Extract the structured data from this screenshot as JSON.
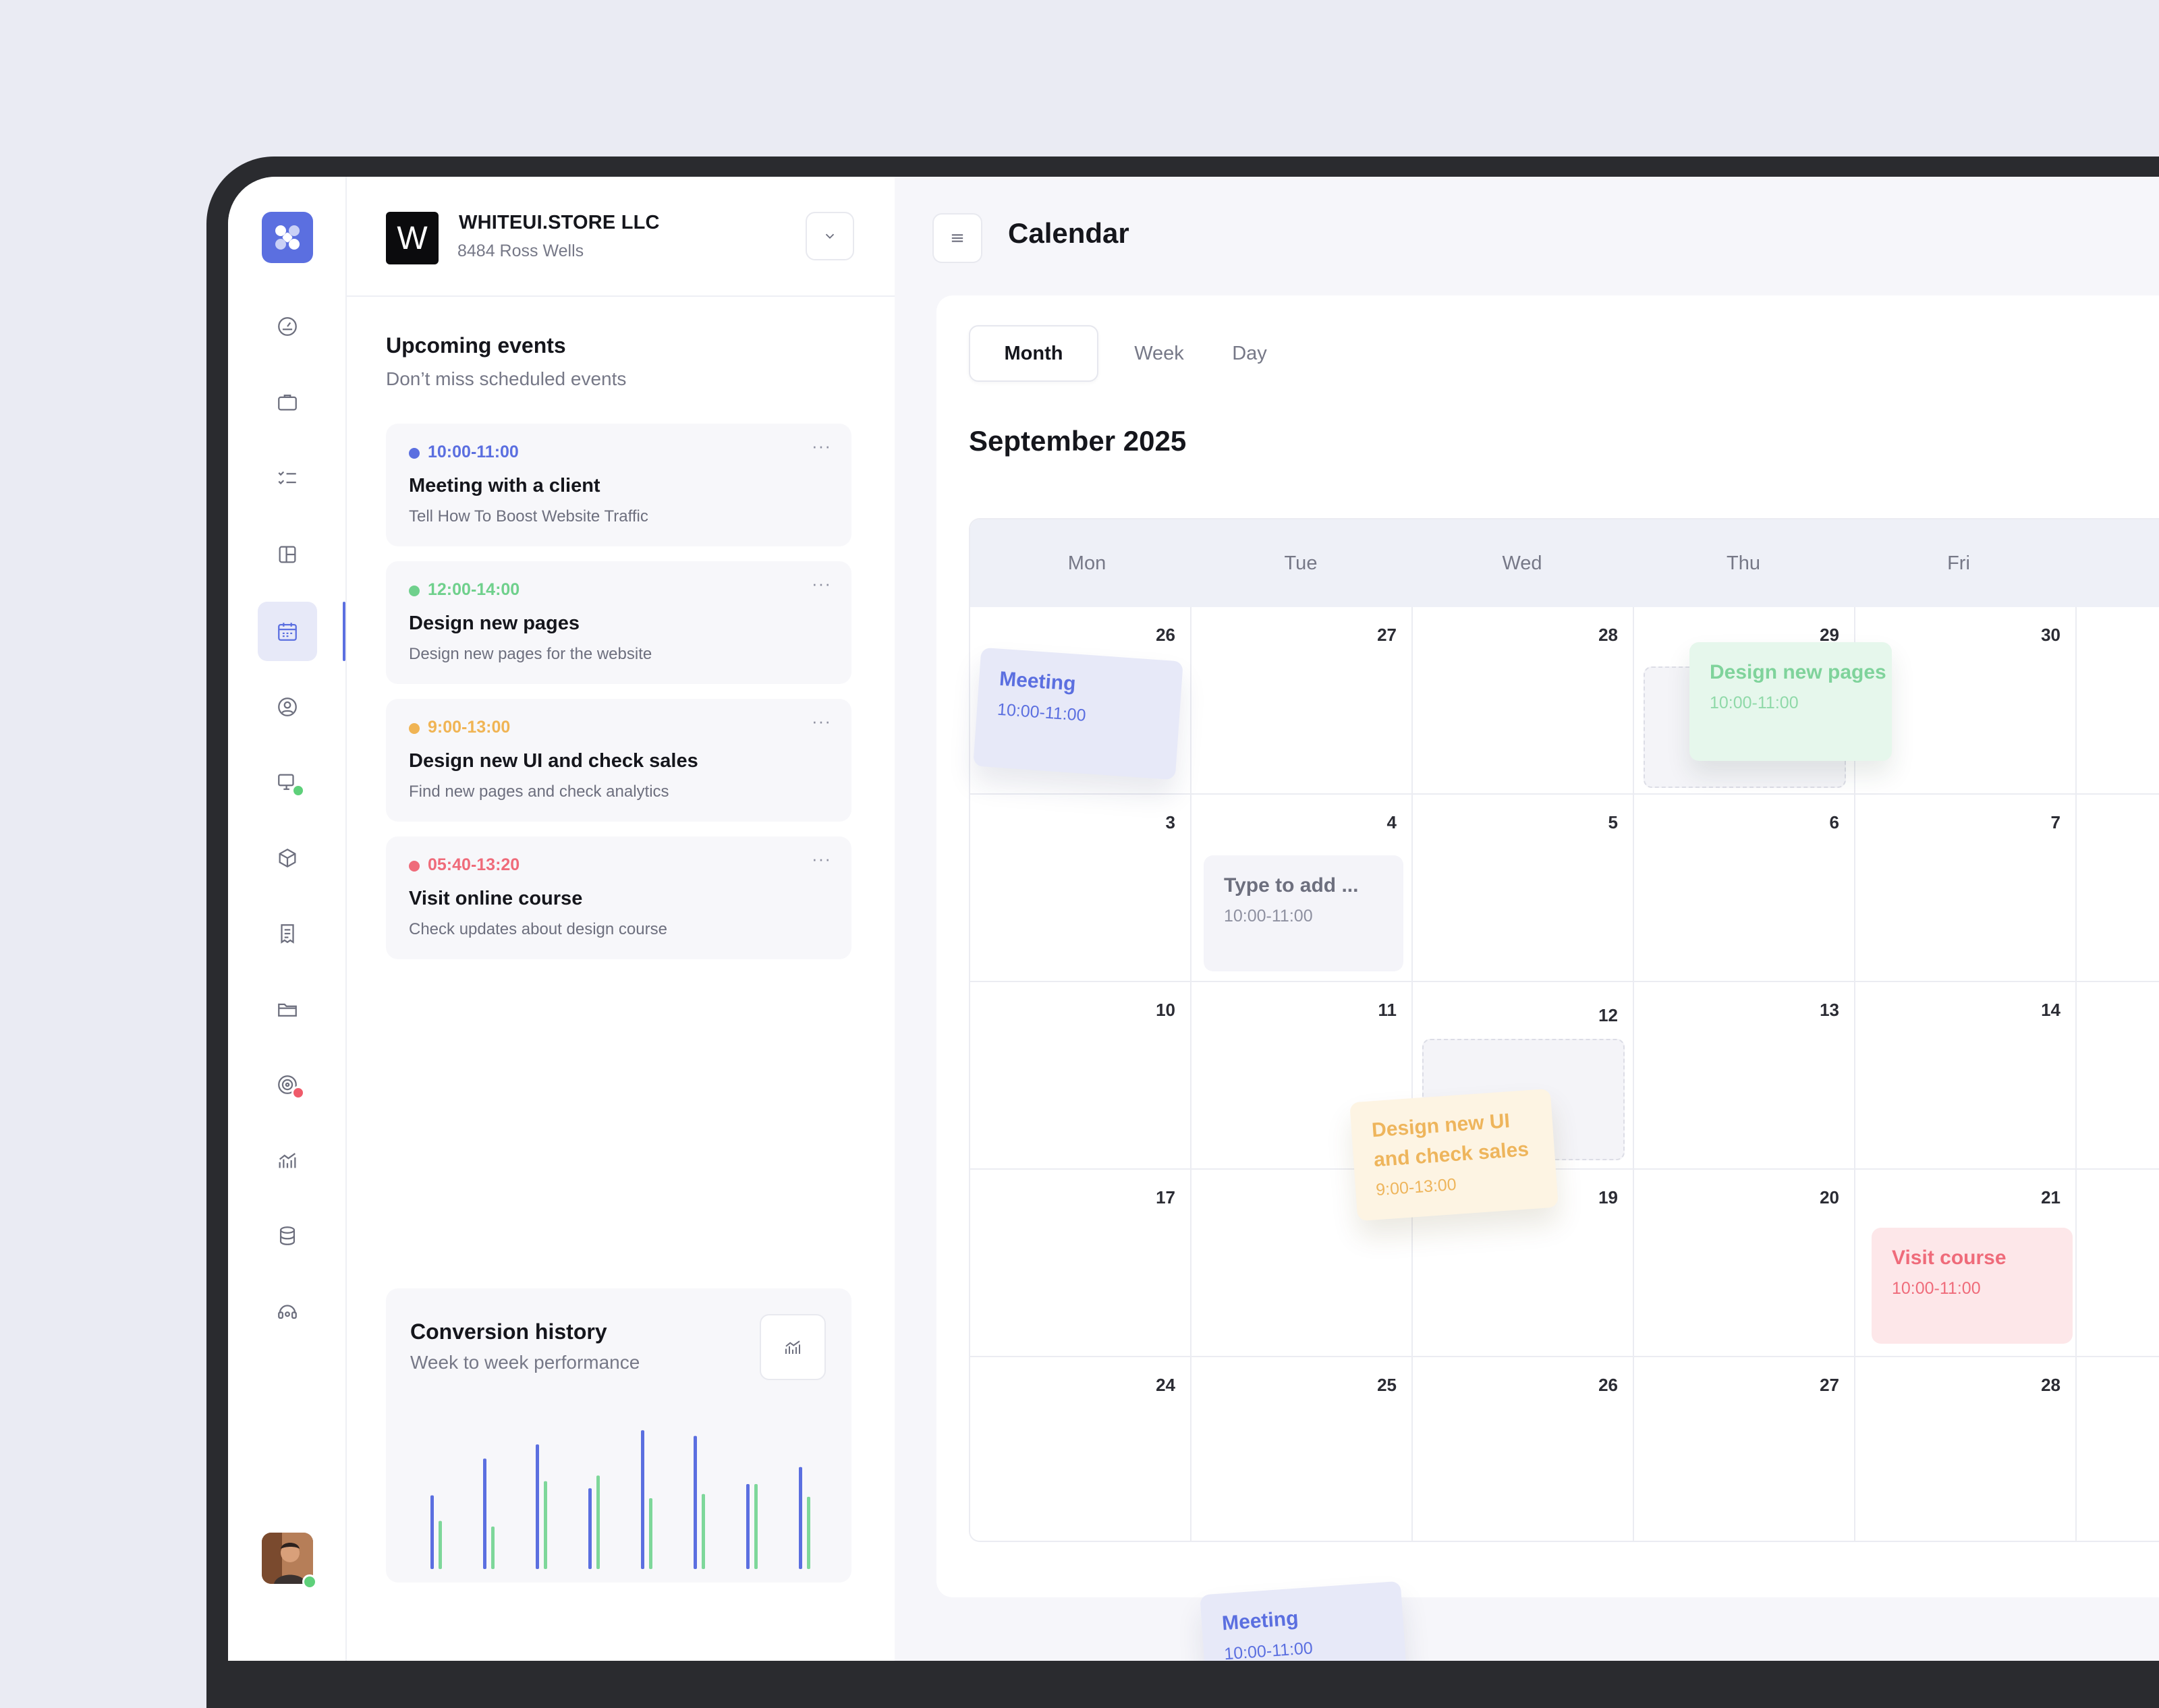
{
  "company": {
    "logo_letter": "W",
    "name": "WHITEUI.STORE LLC",
    "address": "8484 Ross Wells"
  },
  "upcoming": {
    "title": "Upcoming events",
    "subtitle": "Don’t miss scheduled events",
    "more_label": "···",
    "events": [
      {
        "time": "10:00-11:00",
        "title": "Meeting with a client",
        "desc": "Tell How To Boost Website Traffic",
        "color": "#5b6fe0"
      },
      {
        "time": "12:00-14:00",
        "title": "Design new pages",
        "desc": "Design new pages for the website",
        "color": "#6fd08c"
      },
      {
        "time": "9:00-13:00",
        "title": "Design new UI and check sales",
        "desc": "Find new pages and check analytics",
        "color": "#f0b454"
      },
      {
        "time": "05:40-13:20",
        "title": "Visit online course",
        "desc": "Check updates about design course",
        "color": "#ef6b7a"
      }
    ]
  },
  "conversion": {
    "title": "Conversion history",
    "subtitle": "Week to week performance",
    "chart_data": {
      "type": "bar",
      "series": [
        {
          "values": [
            52,
            78,
            88,
            57,
            98,
            94,
            60,
            72
          ],
          "color": "#5b6fe0"
        },
        {
          "values": [
            34,
            30,
            62,
            66,
            50,
            53,
            60,
            51
          ],
          "color": "#7ed79a"
        }
      ]
    }
  },
  "calendar": {
    "page_title": "Calendar",
    "tabs": [
      "Month",
      "Week",
      "Day"
    ],
    "active_tab": "Month",
    "month_label": "September 2025",
    "weekdays": [
      "Mon",
      "Tue",
      "Wed",
      "Thu",
      "Fri"
    ],
    "weeks": [
      [
        "26",
        "27",
        "28",
        "29",
        "30"
      ],
      [
        "3",
        "4",
        "5",
        "6",
        "7"
      ],
      [
        "10",
        "11",
        "12",
        "13",
        "14"
      ],
      [
        "17",
        "",
        "19",
        "20",
        "21"
      ],
      [
        "24",
        "25",
        "26",
        "27",
        "28"
      ]
    ],
    "events": [
      {
        "title": "Meeting",
        "time": "10:00-11:00"
      },
      {
        "title": "Design new pages",
        "time": "10:00-11:00"
      },
      {
        "title": "Type to add ...",
        "time": "10:00-11:00"
      },
      {
        "title": "Design new UI\nand check sales",
        "time": "9:00-13:00"
      },
      {
        "title": "Visit course",
        "time": "10:00-11:00"
      },
      {
        "title": "Meeting",
        "time": "10:00-11:00"
      }
    ]
  },
  "colors": {
    "accent": "#5b6fe0",
    "green": "#6fd08c",
    "yellow": "#f0b454",
    "red": "#ef6b7a"
  },
  "icons": [
    "dashboard-icon",
    "briefcase-icon",
    "checklist-icon",
    "layout-icon",
    "calendar-icon",
    "user-circle-icon",
    "monitor-icon",
    "box-icon",
    "receipt-icon",
    "folder-icon",
    "target-icon",
    "analytics-icon",
    "database-icon",
    "support-icon"
  ]
}
